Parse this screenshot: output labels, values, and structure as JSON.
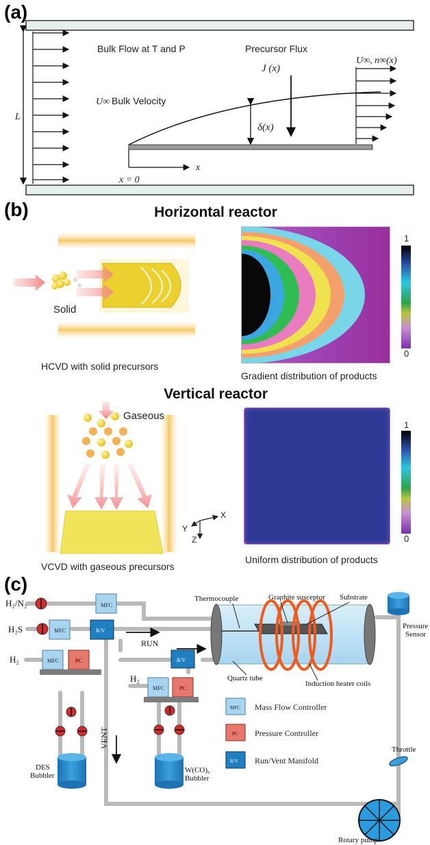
{
  "panel_a": {
    "label": "(a)",
    "bulk_flow": "Bulk Flow at T and P",
    "precursor_flux": "Precursor Flux",
    "bulk_velocity_symbol": "U∞",
    "bulk_velocity": "Bulk Velocity",
    "length_symbol": "L",
    "flux_symbol": "J (x)",
    "boundary_symbol": "δ(x)",
    "far_field": "U∞, n∞(x)",
    "x_axis": "x",
    "origin": "x = 0"
  },
  "panel_b": {
    "label": "(b)",
    "horizontal": {
      "title": "Horizontal reactor",
      "solid_label": "Solid",
      "left_caption": "HCVD with solid precursors",
      "right_caption": "Gradient distribution of products",
      "scale_max": "1",
      "scale_min": "0"
    },
    "vertical": {
      "title": "Vertical reactor",
      "gaseous_label": "Gaseous",
      "left_caption": "VCVD with gaseous precursors",
      "right_caption": "Uniform distribution of products",
      "scale_max": "1",
      "scale_min": "0",
      "axis_x": "X",
      "axis_y": "Y",
      "axis_z": "Z"
    }
  },
  "panel_c": {
    "label": "(c)",
    "gas_h2n2": "H₂/N₂",
    "gas_h2s": "H₂S",
    "gas_h2_left": "H₂",
    "gas_h2_mid": "H₂",
    "mfc": "MFC",
    "pc": "PC",
    "rv": "R/V",
    "run": "RUN",
    "vent": "VENT",
    "thermocouple": "Thermocouple",
    "graphite": "Graphite susceptor",
    "substrate": "Substrate",
    "quartz": "Quartz tube",
    "coils": "Induction heater coils",
    "pressure_sensor_1": "Pressure",
    "pressure_sensor_2": "Sensor",
    "throttle": "Throttle",
    "rotary": "Rotary pump",
    "des_1": "DES",
    "des_2": "Bubbler",
    "wco_1": "W(CO)₆",
    "wco_2": "Bubbler",
    "legend_mfc": "Mass Flow Controller",
    "legend_pc": "Pressure Controller",
    "legend_rv": "Run/Vent Manifold"
  },
  "colors": {
    "mfc": "#a9d4ef",
    "pc": "#e8776b",
    "rv": "#1f7fc0",
    "coil": "#ef5a1e",
    "valve": "#d8282a",
    "uniform": "#2c3a96",
    "gradient_bg": "#9c3fb0"
  }
}
